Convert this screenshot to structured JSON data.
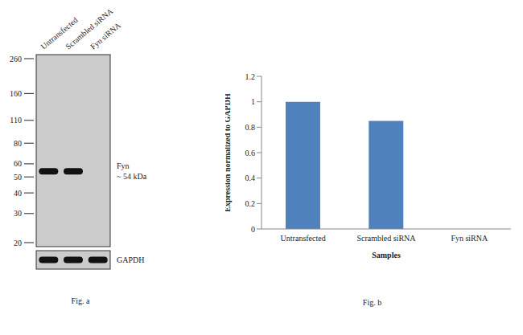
{
  "blot": {
    "title": "Fig. a",
    "lanes": [
      "Untransfected",
      "Scrambled siRNA",
      "Fyn siRNA"
    ],
    "markers": [
      260,
      160,
      110,
      80,
      60,
      50,
      40,
      30,
      20
    ],
    "bands": [
      {
        "label": "Fyn",
        "size_label": "~ 54 kDa",
        "size": 54,
        "present": [
          true,
          true,
          false
        ]
      }
    ],
    "loading_control": {
      "label": "GAPDH",
      "present": [
        true,
        true,
        true
      ]
    }
  },
  "chart_data": {
    "type": "bar",
    "title": "Fig. b",
    "categories": [
      "Untransfected",
      "Scrambled siRNA",
      "Fyn siRNA"
    ],
    "values": [
      1,
      0.85,
      0
    ],
    "color": "#4f81bd",
    "ylim": [
      0,
      1.2
    ],
    "yticks": [
      0,
      0.2,
      0.4,
      0.6,
      0.8,
      1,
      1.2
    ],
    "x_label": "Samples",
    "y_label": "Expression normalized to GAPDH"
  }
}
